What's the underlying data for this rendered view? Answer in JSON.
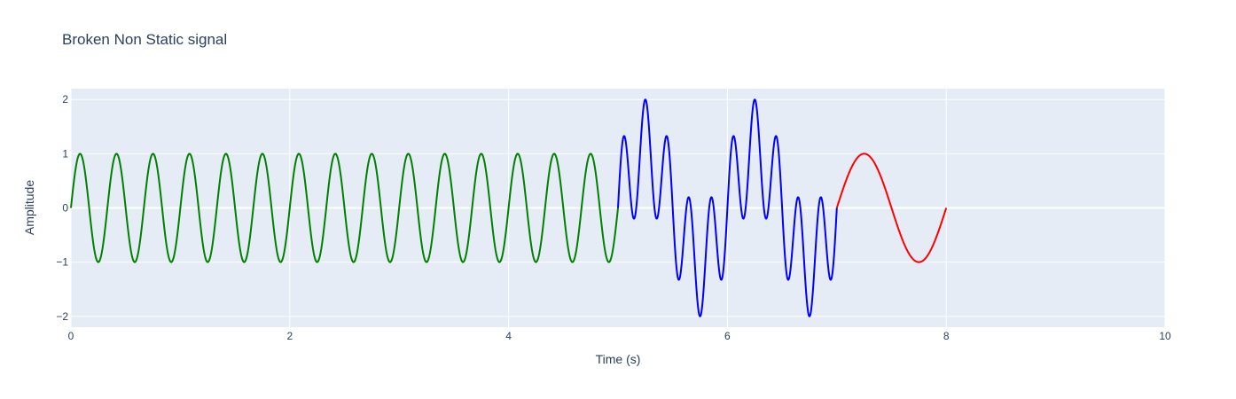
{
  "chart_data": {
    "type": "line",
    "title": "Broken Non Static signal",
    "xlabel": "Time (s)",
    "ylabel": "Amplitude",
    "xlim": [
      0,
      10
    ],
    "ylim": [
      -2.2,
      2.2
    ],
    "xticks": [
      0,
      2,
      4,
      6,
      8,
      10
    ],
    "yticks": [
      -2,
      -1,
      0,
      1,
      2
    ],
    "xtick_labels": [
      "0",
      "2",
      "4",
      "6",
      "8",
      "10"
    ],
    "ytick_labels": [
      "−2",
      "−1",
      "0",
      "1",
      "2"
    ],
    "grid": true,
    "legend": "none",
    "plot_background": "#e5ecf6",
    "series": [
      {
        "color": "#008000",
        "x_range": [
          0,
          5
        ],
        "formula": "sin(2π·3·t)",
        "frequency_hz": 3,
        "amplitude": 1
      },
      {
        "color": "#0000ff",
        "x_range": [
          5,
          7
        ],
        "formula": "sin(2π·5·t) + sin(2π·1·t)",
        "components": [
          {
            "frequency_hz": 5,
            "amplitude": 1
          },
          {
            "frequency_hz": 1,
            "amplitude": 1
          }
        ]
      },
      {
        "color": "#ff0000",
        "x_range": [
          7,
          8
        ],
        "formula": "sin(2π·1·t)",
        "frequency_hz": 1,
        "amplitude": 1
      }
    ]
  }
}
